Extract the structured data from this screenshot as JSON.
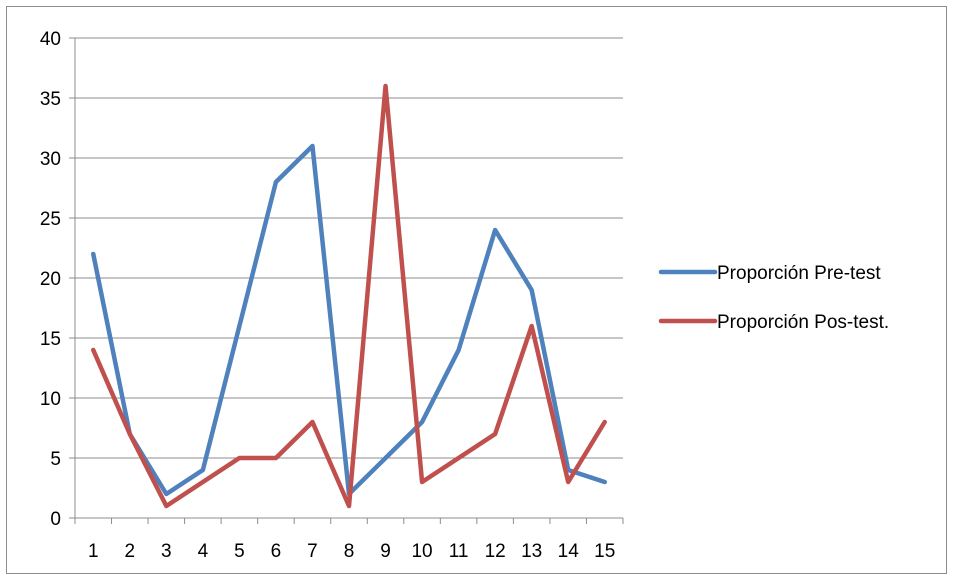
{
  "chart_data": {
    "type": "line",
    "title": "",
    "xlabel": "",
    "ylabel": "",
    "categories": [
      "1",
      "2",
      "3",
      "4",
      "5",
      "6",
      "7",
      "8",
      "9",
      "10",
      "11",
      "12",
      "13",
      "14",
      "15"
    ],
    "ylim": [
      0,
      40
    ],
    "yticks": [
      0,
      5,
      10,
      15,
      20,
      25,
      30,
      35,
      40
    ],
    "grid": "horizontal",
    "legend_position": "right",
    "series": [
      {
        "name": "Proporción Pre-test",
        "color": "#4f81bd",
        "values": [
          22,
          7,
          2,
          4,
          16,
          28,
          31,
          2,
          5,
          8,
          14,
          24,
          19,
          4,
          3
        ]
      },
      {
        "name": "Proporción Pos-test.",
        "color": "#c0504d",
        "values": [
          14,
          7,
          1,
          3,
          5,
          5,
          8,
          1,
          36,
          3,
          5,
          7,
          16,
          3,
          8
        ]
      }
    ]
  }
}
